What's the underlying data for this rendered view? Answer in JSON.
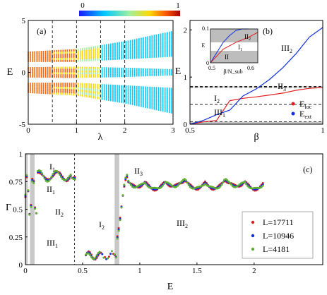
{
  "chart_data": [
    {
      "panel": "(a)",
      "type": "scatter",
      "xlabel": "λ",
      "ylabel": "E",
      "xlim": [
        0,
        3
      ],
      "ylim": [
        -5,
        5
      ],
      "xticks": [
        "0",
        "1",
        "2",
        "3"
      ],
      "yticks": [
        "-5",
        "0",
        "5"
      ],
      "colorbar": {
        "min_label": "0",
        "max_label": "1",
        "colors": [
          "#1a1aff",
          "#00c8ff",
          "#a0f0a0",
          "#ffd700",
          "#ff6000",
          "#b00000"
        ]
      },
      "dashed_vlines": [
        0.5,
        1.0,
        1.5,
        2.0
      ],
      "band_edges": [
        {
          "lambda": 0.0,
          "bands": [
            [
              -2.0,
              -1.0
            ],
            [
              -0.5,
              0.5
            ],
            [
              1.0,
              2.0
            ]
          ]
        },
        {
          "lambda": 1.0,
          "bands": [
            [
              -2.25,
              -1.0
            ],
            [
              -0.55,
              0.55
            ],
            [
              1.0,
              2.25
            ]
          ]
        },
        {
          "lambda": 2.0,
          "bands": [
            [
              -3.0,
              -1.25
            ],
            [
              -0.45,
              0.45
            ],
            [
              1.25,
              3.0
            ]
          ]
        },
        {
          "lambda": 3.0,
          "bands": [
            [
              -4.0,
              -1.5
            ],
            [
              -0.3,
              0.3
            ],
            [
              1.5,
              4.0
            ]
          ]
        }
      ]
    },
    {
      "panel": "(b)",
      "type": "line",
      "xlabel": "β",
      "ylabel": "E",
      "xlim": [
        0.5,
        1
      ],
      "ylim": [
        0,
        2.2
      ],
      "xticks": [
        "0.5",
        "1"
      ],
      "yticks": [
        "0",
        "1",
        "2"
      ],
      "series": [
        {
          "name": "E_loc",
          "color": "#e02020",
          "x": [
            0.5,
            0.55,
            0.6,
            0.65,
            0.7,
            0.75,
            0.8,
            0.85,
            0.9,
            0.95,
            1.0
          ],
          "y": [
            0.0,
            0.05,
            0.08,
            0.5,
            0.55,
            0.58,
            0.62,
            0.66,
            0.72,
            0.76,
            0.78
          ]
        },
        {
          "name": "E_ext",
          "color": "#1030e0",
          "x": [
            0.5,
            0.55,
            0.6,
            0.65,
            0.7,
            0.75,
            0.8,
            0.85,
            0.9,
            0.95,
            1.0
          ],
          "y": [
            0.0,
            0.08,
            0.2,
            0.3,
            0.6,
            0.75,
            0.95,
            1.2,
            1.5,
            1.85,
            2.05
          ]
        }
      ],
      "dashed_hlines": [
        0.05,
        0.42,
        0.78,
        0.8
      ],
      "labels": {
        "III2": {
          "main": "III",
          "sub": "2"
        },
        "II3": {
          "main": "II",
          "sub": "3"
        },
        "I2": {
          "main": "I",
          "sub": "2"
        },
        "III1": {
          "main": "III",
          "sub": "1"
        }
      },
      "legend": [
        {
          "main": "E",
          "sub": "loc",
          "color": "#e02020"
        },
        {
          "main": "E",
          "sub": "ext",
          "color": "#1030e0"
        }
      ],
      "inset": {
        "xlabel": "β/N_sub",
        "ylabel": "E",
        "xticks": [
          "0.5",
          "0.6"
        ],
        "yticks": [
          "0",
          "0.1"
        ],
        "labels": {
          "II2": {
            "main": "II",
            "sub": "2"
          },
          "I1": {
            "main": "I",
            "sub": "1"
          },
          "II": {
            "main": "II",
            "sub": ""
          }
        },
        "blue": {
          "x": [
            0.5,
            0.52,
            0.54,
            0.56,
            0.58,
            0.6,
            0.62
          ],
          "y": [
            0.0,
            0.03,
            0.06,
            0.08,
            0.095,
            0.1,
            0.1
          ]
        },
        "red": {
          "x": [
            0.5,
            0.54,
            0.58,
            0.62,
            0.65
          ],
          "y": [
            0.0,
            0.04,
            0.06,
            0.075,
            0.09
          ]
        }
      }
    },
    {
      "panel": "(c)",
      "type": "scatter",
      "xlabel": "E",
      "ylabel": "Γ",
      "xlim": [
        0,
        2.6
      ],
      "ylim": [
        0,
        1
      ],
      "xticks": [
        "0",
        "0.5",
        "1",
        "1.5",
        "2"
      ],
      "yticks": [
        "0",
        "0.25",
        "0.5",
        "0.75",
        "1"
      ],
      "series": [
        {
          "name": "L=17711",
          "color": "#e02020"
        },
        {
          "name": "L=10946",
          "color": "#1030e0"
        },
        {
          "name": "L=4181",
          "color": "#60b030"
        }
      ],
      "dashed_vlines": [
        0.43
      ],
      "shaded_bands": [
        [
          0.0,
          0.02
        ],
        [
          0.04,
          0.08
        ],
        [
          0.78,
          0.82
        ]
      ],
      "labels": {
        "I1a": {
          "main": "I",
          "sub": "1"
        },
        "II1": {
          "main": "II",
          "sub": "1"
        },
        "II2": {
          "main": "II",
          "sub": "2"
        },
        "II3": {
          "main": "II",
          "sub": "3"
        },
        "III1": {
          "main": "III",
          "sub": "1"
        },
        "I2": {
          "main": "I",
          "sub": "2"
        },
        "III2": {
          "main": "III",
          "sub": "2"
        }
      }
    }
  ],
  "panel_labels": {
    "a": "(a)",
    "b": "(b)",
    "c": "(c)"
  }
}
